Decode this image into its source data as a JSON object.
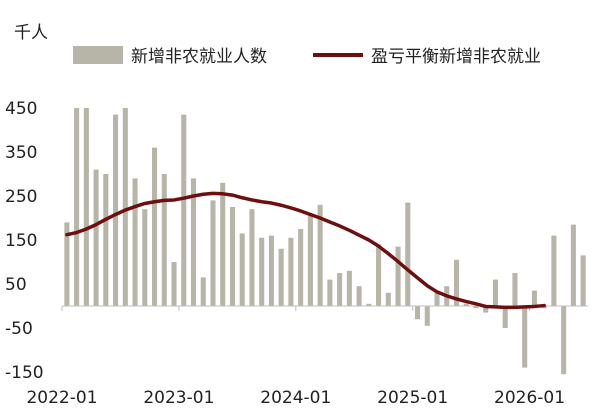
{
  "chart_data": {
    "type": "bar+line",
    "unit_label": "千人",
    "colors": {
      "bar": "#b7b5a8",
      "line": "#6f0e0e",
      "axis": "#bfbfbf"
    },
    "ylim": [
      -150,
      450
    ],
    "y_ticks": [
      "450",
      "350",
      "250",
      "150",
      "50",
      "-50",
      "-150"
    ],
    "y_tick_values": [
      450,
      350,
      250,
      150,
      50,
      -50,
      -150
    ],
    "x_ticks": [
      "2022-01",
      "2023-01",
      "2024-01",
      "2025-01",
      "2026-01"
    ],
    "x_tick_indices": [
      0,
      12,
      24,
      36,
      48
    ],
    "legend": {
      "position": "top"
    },
    "series": [
      {
        "name": "新增非农就业人数",
        "type": "bar",
        "values": [
          190,
          450,
          450,
          310,
          300,
          435,
          450,
          290,
          220,
          360,
          300,
          100,
          435,
          290,
          65,
          240,
          280,
          225,
          165,
          220,
          155,
          160,
          130,
          155,
          175,
          210,
          230,
          60,
          75,
          80,
          45,
          5,
          140,
          30,
          135,
          235,
          -30,
          -45,
          30,
          45,
          105,
          5,
          -5,
          -15,
          60,
          -50,
          75,
          -140,
          35,
          -5,
          160,
          -155,
          185,
          115
        ]
      },
      {
        "name": "盈亏平衡新增非农就业",
        "type": "line",
        "values": [
          162,
          167,
          175,
          185,
          197,
          208,
          218,
          226,
          233,
          237,
          240,
          241,
          245,
          250,
          254,
          256,
          255,
          252,
          246,
          241,
          237,
          234,
          229,
          223,
          216,
          208,
          200,
          191,
          182,
          172,
          161,
          150,
          136,
          119,
          101,
          82,
          64,
          46,
          32,
          23,
          16,
          10,
          5,
          -1,
          -2,
          -3,
          -3,
          -2,
          -1,
          1
        ]
      }
    ]
  }
}
